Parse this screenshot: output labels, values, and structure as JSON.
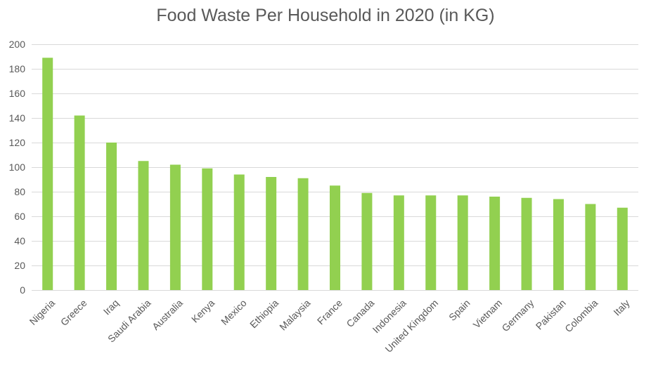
{
  "chart_data": {
    "type": "bar",
    "title": "Food Waste Per Household in 2020 (in KG)",
    "xlabel": "",
    "ylabel": "",
    "ylim": [
      0,
      200
    ],
    "yticks": [
      0,
      20,
      40,
      60,
      80,
      100,
      120,
      140,
      160,
      180,
      200
    ],
    "grid": true,
    "legend": "none",
    "bar_color": "#92d050",
    "categories": [
      "Nigeria",
      "Greece",
      "Iraq",
      "Saudi Arabia",
      "Australia",
      "Kenya",
      "Mexico",
      "Ethiopia",
      "Malaysia",
      "France",
      "Canada",
      "Indonesia",
      "United Kingdom",
      "Spain",
      "Vietnam",
      "Germany",
      "Pakistan",
      "Colombia",
      "Italy"
    ],
    "values": [
      189,
      142,
      120,
      105,
      102,
      99,
      94,
      92,
      91,
      85,
      79,
      77,
      77,
      77,
      76,
      75,
      74,
      70,
      67
    ]
  }
}
